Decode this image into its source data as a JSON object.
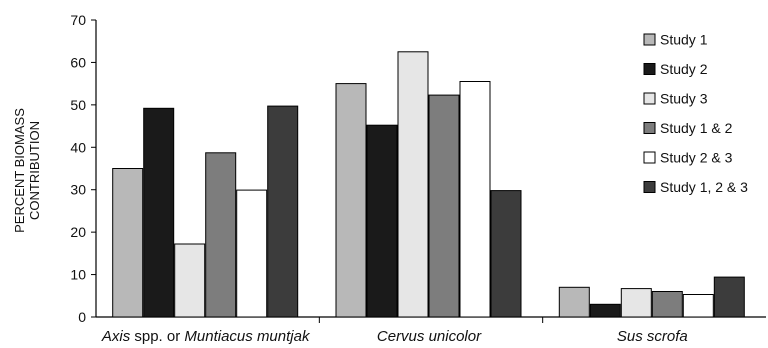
{
  "chart_data": {
    "type": "bar",
    "categories": [
      {
        "parts": [
          {
            "text": "Axis",
            "italic": true
          },
          {
            "text": " spp. or ",
            "italic": false
          },
          {
            "text": "Muntiacus muntjak",
            "italic": true
          }
        ]
      },
      {
        "parts": [
          {
            "text": "Cervus unicolor",
            "italic": true
          }
        ]
      },
      {
        "parts": [
          {
            "text": "Sus scrofa",
            "italic": true
          }
        ]
      }
    ],
    "ylabel_lines": [
      "PERCENT BIOMASS",
      "CONTRIBUTION"
    ],
    "ylim": [
      0,
      70
    ],
    "yticks": [
      0,
      10,
      20,
      30,
      40,
      50,
      60,
      70
    ],
    "grid": false,
    "legend_position": "right",
    "series": [
      {
        "name": "Study 1",
        "color": "#b8b8b8",
        "values": [
          35,
          55,
          7
        ]
      },
      {
        "name": "Study 2",
        "color": "#1a1a1a",
        "values": [
          49.2,
          45.2,
          3
        ]
      },
      {
        "name": "Study 3",
        "color": "#e6e6e6",
        "values": [
          17.2,
          62.5,
          6.7
        ]
      },
      {
        "name": "Study 1 & 2",
        "color": "#7d7d7d",
        "values": [
          38.7,
          52.3,
          6
        ]
      },
      {
        "name": "Study 2 & 3",
        "color": "#ffffff",
        "values": [
          29.9,
          55.5,
          5.3
        ]
      },
      {
        "name": "Study 1, 2 & 3",
        "color": "#3c3c3c",
        "values": [
          49.7,
          29.8,
          9.4
        ]
      }
    ]
  }
}
